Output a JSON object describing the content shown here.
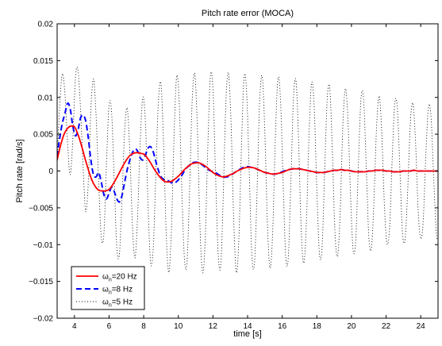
{
  "chart_data": {
    "type": "line",
    "title": "Pitch rate error (MOCA)",
    "xlabel": "time [s]",
    "ylabel": "Pitch rate [rad/s]",
    "xlim": [
      3,
      25
    ],
    "ylim": [
      -0.02,
      0.02
    ],
    "xticks": [
      4,
      6,
      8,
      10,
      12,
      14,
      16,
      18,
      20,
      22,
      24
    ],
    "yticks": [
      -0.02,
      -0.015,
      -0.01,
      -0.005,
      0,
      0.005,
      0.01,
      0.015,
      0.02
    ],
    "ytick_labels": [
      "−0.02",
      "−0.015",
      "−0.01",
      "−0.005",
      "0",
      "0.005",
      "0.01",
      "0.015",
      "0.02"
    ],
    "xtick_labels": [
      "4",
      "6",
      "8",
      "10",
      "12",
      "14",
      "16",
      "18",
      "20",
      "22",
      "24"
    ],
    "grid": false,
    "legend_position": "bottom-left",
    "series": [
      {
        "name": "ωn=20 Hz",
        "legend_base": "ω",
        "legend_sub": "n",
        "legend_rest": "=20 Hz",
        "color": "#ff0000",
        "style": "solid",
        "x": [
          3.0,
          3.2,
          3.4,
          3.6,
          3.8,
          4.0,
          4.2,
          4.4,
          4.6,
          4.8,
          5.0,
          5.2,
          5.4,
          5.6,
          5.8,
          6.0,
          6.2,
          6.4,
          6.6,
          6.8,
          7.0,
          7.2,
          7.4,
          7.6,
          7.8,
          8.0,
          8.2,
          8.4,
          8.6,
          8.8,
          9.0,
          9.2,
          9.4,
          9.6,
          9.8,
          10.0,
          10.2,
          10.4,
          10.6,
          10.8,
          11.0,
          11.2,
          11.4,
          11.6,
          11.8,
          12.0,
          12.2,
          12.4,
          12.6,
          12.8,
          13.0,
          13.2,
          13.4,
          13.6,
          13.8,
          14.0,
          14.2,
          14.4,
          14.6,
          14.8,
          15.0,
          15.2,
          15.4,
          15.6,
          15.8,
          16.0,
          16.2,
          16.4,
          16.6,
          16.8,
          17.0,
          17.2,
          17.4,
          17.6,
          17.8,
          18.0,
          18.2,
          18.4,
          18.6,
          18.8,
          19.0,
          19.2,
          19.4,
          19.6,
          19.8,
          20.0,
          20.2,
          20.4,
          20.6,
          20.8,
          21.0,
          21.2,
          21.4,
          21.6,
          21.8,
          22.0,
          22.2,
          22.4,
          22.6,
          22.8,
          23.0,
          23.2,
          23.4,
          23.6,
          23.8,
          24.0,
          24.2,
          24.4,
          24.6,
          24.8,
          25.0
        ],
        "y": [
          0.0015,
          0.0035,
          0.005,
          0.0058,
          0.0061,
          0.006,
          0.005,
          0.0035,
          0.0018,
          0.0002,
          -0.0012,
          -0.0021,
          -0.0026,
          -0.0027,
          -0.0027,
          -0.0025,
          -0.0019,
          -0.0011,
          -0.0002,
          0.0007,
          0.0015,
          0.0021,
          0.0024,
          0.0025,
          0.0024,
          0.0023,
          0.0018,
          0.0011,
          0.0003,
          -0.0004,
          -0.001,
          -0.0014,
          -0.0015,
          -0.0014,
          -0.0011,
          -0.0007,
          -0.0002,
          0.0003,
          0.0007,
          0.001,
          0.0011,
          0.0011,
          0.0009,
          0.0006,
          0.0002,
          -0.0002,
          -0.0005,
          -0.0007,
          -0.0008,
          -0.0007,
          -0.0005,
          -0.0003,
          0.0,
          0.0002,
          0.0004,
          0.0005,
          0.0005,
          0.0004,
          0.0002,
          0.0,
          -0.0002,
          -0.0003,
          -0.0004,
          -0.0004,
          -0.0003,
          -0.0002,
          0.0,
          0.0002,
          0.0003,
          0.0003,
          0.0003,
          0.0002,
          0.0001,
          0.0,
          -0.0001,
          -0.0002,
          -0.0002,
          -0.0002,
          -0.0001,
          0.0,
          0.0001,
          0.0001,
          0.0002,
          0.0001,
          0.0001,
          0.0,
          -0.0001,
          -0.0001,
          -0.0001,
          -0.0001,
          0.0,
          0.0,
          0.0001,
          0.0001,
          0.0001,
          0.0,
          0.0,
          -0.0001,
          -0.0001,
          -0.0001,
          0.0,
          0.0,
          0.0,
          0.0001,
          0.0,
          0.0,
          0.0,
          0.0,
          0.0,
          0.0,
          0.0
        ]
      },
      {
        "name": "ωn=8 Hz",
        "legend_base": "ω",
        "legend_sub": "n",
        "legend_rest": "=8 Hz",
        "color": "#0000ff",
        "style": "dashed",
        "x": [
          3.0,
          3.15,
          3.3,
          3.45,
          3.6,
          3.75,
          3.9,
          4.05,
          4.2,
          4.35,
          4.5,
          4.65,
          4.8,
          4.95,
          5.1,
          5.25,
          5.4,
          5.55,
          5.7,
          5.85,
          6.0,
          6.15,
          6.3,
          6.45,
          6.6,
          6.75,
          6.9,
          7.05,
          7.2,
          7.35,
          7.5,
          7.65,
          7.8,
          7.95,
          8.1,
          8.25,
          8.4,
          8.55,
          8.7,
          8.85,
          9.0,
          9.2,
          9.4,
          9.6,
          9.8,
          10.0,
          10.2,
          10.4,
          10.6,
          10.8,
          11.0,
          11.2,
          11.4,
          11.6,
          11.8,
          12.0,
          12.2,
          12.4,
          12.6,
          12.8,
          13.0,
          13.2,
          13.4,
          13.6,
          13.8,
          14.0,
          14.2,
          14.4,
          14.6,
          14.8,
          15.0,
          15.2,
          15.4,
          15.6,
          15.8,
          16.0,
          16.2,
          16.4,
          16.6,
          16.8,
          17.0,
          17.2,
          17.4,
          17.6,
          17.8,
          18.0,
          18.2,
          18.4,
          18.6,
          18.8,
          19.0,
          19.2,
          19.4,
          19.6,
          19.8,
          20.0,
          20.2,
          20.4,
          20.6,
          20.8,
          21.0,
          21.2,
          21.4,
          21.6,
          21.8,
          22.0,
          22.2,
          22.4,
          22.6,
          22.8,
          23.0,
          23.2,
          23.4,
          23.6,
          23.8,
          24.0,
          24.2,
          24.4,
          24.6,
          24.8,
          25.0
        ],
        "y": [
          0.002,
          0.0045,
          0.0065,
          0.0078,
          0.0092,
          0.0085,
          0.0062,
          0.0048,
          0.0055,
          0.0072,
          0.0076,
          0.0068,
          0.0045,
          0.0015,
          -0.0005,
          -0.0008,
          -0.0002,
          -0.0015,
          -0.0032,
          -0.0038,
          -0.003,
          -0.0022,
          -0.0028,
          -0.0038,
          -0.0042,
          -0.0033,
          -0.0015,
          0.0002,
          0.0015,
          0.0025,
          0.003,
          0.0027,
          0.0018,
          0.0015,
          0.0022,
          0.0031,
          0.0033,
          0.0026,
          0.0013,
          0.0001,
          -0.0008,
          -0.0012,
          -0.0013,
          -0.0016,
          -0.0016,
          -0.0012,
          -0.0006,
          0.0002,
          0.0007,
          0.0011,
          0.0012,
          0.0011,
          0.0008,
          0.0004,
          0.0001,
          -0.0001,
          -0.0003,
          -0.0006,
          -0.0008,
          -0.0008,
          -0.0006,
          -0.0003,
          0.0,
          0.0003,
          0.0005,
          0.0006,
          0.0005,
          0.0004,
          0.0002,
          0.0,
          -0.0002,
          -0.0003,
          -0.0004,
          -0.0004,
          -0.0003,
          -0.0001,
          0.0001,
          0.0002,
          0.0003,
          0.0003,
          0.0003,
          0.0002,
          0.0001,
          0.0,
          -0.0001,
          -0.0002,
          -0.0002,
          -0.0002,
          -0.0001,
          0.0,
          0.0001,
          0.0001,
          0.0002,
          0.0001,
          0.0001,
          0.0,
          -0.0001,
          -0.0001,
          -0.0001,
          -0.0001,
          0.0,
          0.0,
          0.0001,
          0.0001,
          0.0001,
          0.0,
          0.0,
          -0.0001,
          -0.0001,
          -0.0001,
          0.0,
          0.0,
          0.0,
          0.0001,
          0.0,
          0.0,
          0.0,
          0.0,
          0.0,
          0.0,
          0.0
        ]
      },
      {
        "name": "ωn=5 Hz",
        "legend_base": "ω",
        "legend_sub": "n",
        "legend_rest": "=5 Hz",
        "color": "#000000",
        "style": "dotted",
        "x": [
          3.0,
          3.15,
          3.3,
          3.45,
          3.6,
          3.75,
          3.9,
          4.05,
          4.2,
          4.35,
          4.5,
          4.65,
          4.8,
          4.95,
          5.1,
          5.25,
          5.4,
          5.55,
          5.7,
          5.85,
          6.0,
          6.15,
          6.3,
          6.45,
          6.6,
          6.75,
          6.9,
          7.05,
          7.2,
          7.35,
          7.5,
          7.65,
          7.8,
          7.95,
          8.1,
          8.25,
          8.4,
          8.55,
          8.7,
          8.85,
          9.0,
          9.15,
          9.3,
          9.45,
          9.6,
          9.75,
          9.9,
          10.05,
          10.2,
          10.35,
          10.5,
          10.65,
          10.8,
          10.95,
          11.1,
          11.25,
          11.4,
          11.55,
          11.7,
          11.85,
          12.0,
          12.15,
          12.3,
          12.45,
          12.6,
          12.75,
          12.9,
          13.05,
          13.2,
          13.35,
          13.5,
          13.65,
          13.8,
          13.95,
          14.1,
          14.25,
          14.4,
          14.55,
          14.7,
          14.85,
          15.0,
          15.15,
          15.3,
          15.45,
          15.6,
          15.75,
          15.9,
          16.05,
          16.2,
          16.35,
          16.5,
          16.65,
          16.8,
          16.95,
          17.1,
          17.25,
          17.4,
          17.55,
          17.7,
          17.85,
          18.0,
          18.15,
          18.3,
          18.45,
          18.6,
          18.75,
          18.9,
          19.05,
          19.2,
          19.35,
          19.5,
          19.65,
          19.8,
          19.95,
          20.1,
          20.25,
          20.4,
          20.55,
          20.7,
          20.85,
          21.0,
          21.15,
          21.3,
          21.45,
          21.6,
          21.75,
          21.9,
          22.05,
          22.2,
          22.35,
          22.5,
          22.65,
          22.8,
          22.95,
          23.1,
          23.25,
          23.4,
          23.55,
          23.7,
          23.85,
          24.0,
          24.15,
          24.3,
          24.45,
          24.6,
          24.75,
          24.9,
          25.0
        ],
        "y": [
          0.001,
          0.009,
          0.0132,
          0.0105,
          0.004,
          -0.0005,
          0.004,
          0.0125,
          0.0138,
          0.0085,
          0.0005,
          -0.0055,
          -0.0015,
          0.0085,
          0.0125,
          0.0075,
          -0.0015,
          -0.009,
          -0.0085,
          0.001,
          0.009,
          0.0078,
          -0.0015,
          -0.0105,
          -0.0112,
          -0.0035,
          0.0055,
          0.0085,
          0.0025,
          -0.0075,
          -0.0118,
          -0.006,
          0.004,
          0.01,
          0.0065,
          -0.0045,
          -0.0125,
          -0.0105,
          -0.0005,
          0.0095,
          0.0118,
          0.0035,
          -0.0085,
          -0.0138,
          -0.008,
          0.0045,
          0.0128,
          0.0095,
          -0.0025,
          -0.0118,
          -0.0125,
          -0.0025,
          0.0095,
          0.0132,
          0.0058,
          -0.0075,
          -0.0138,
          -0.0095,
          0.003,
          0.0128,
          0.0112,
          -0.0005,
          -0.0112,
          -0.0128,
          -0.003,
          0.0095,
          0.0133,
          0.0062,
          -0.0068,
          -0.0138,
          -0.009,
          0.0035,
          0.0128,
          0.0105,
          -0.0005,
          -0.0115,
          -0.0125,
          -0.0025,
          0.0095,
          0.0128,
          0.005,
          -0.0075,
          -0.0132,
          -0.0082,
          0.0042,
          0.0125,
          0.0098,
          -0.0012,
          -0.0115,
          -0.0118,
          -0.0015,
          0.0098,
          0.0122,
          0.0038,
          -0.0082,
          -0.0125,
          -0.0068,
          0.005,
          0.012,
          0.0085,
          -0.0025,
          -0.0112,
          -0.0105,
          -0.0002,
          0.0098,
          0.0112,
          0.0025,
          -0.0085,
          -0.0115,
          -0.0055,
          0.006,
          0.0112,
          0.0068,
          -0.0035,
          -0.0108,
          -0.0092,
          0.0008,
          0.0098,
          0.0098,
          0.001,
          -0.0088,
          -0.0105,
          -0.004,
          0.006,
          0.0102,
          0.0052,
          -0.0045,
          -0.0098,
          -0.0078,
          0.0015,
          0.0092,
          0.0085,
          0.0,
          -0.0085,
          -0.0092,
          -0.0025,
          0.0065,
          0.0092,
          0.004,
          -0.0052,
          -0.0092,
          -0.0065,
          0.0025,
          0.0088,
          0.0072,
          -0.001,
          -0.0085,
          -0.009
        ]
      }
    ]
  }
}
